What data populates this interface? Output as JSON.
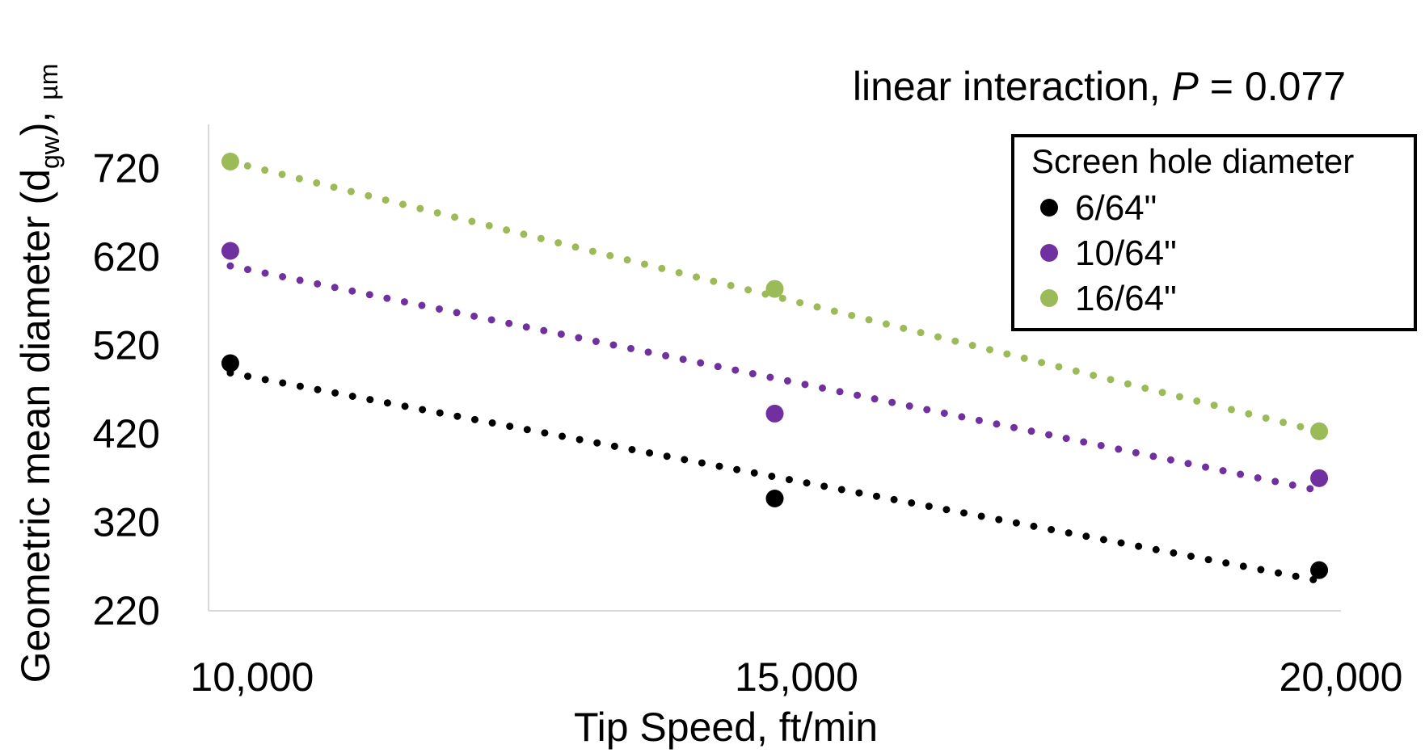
{
  "chart_data": {
    "type": "scatter",
    "annotation": {
      "prefix": "linear interaction, ",
      "italic": "P",
      "suffix": " = 0.077"
    },
    "xlabel": "Tip Speed, ft/min",
    "ylabel": {
      "main": "Geometric mean diameter (d",
      "subscript": "gw",
      "after": "), ",
      "unit": "µm"
    },
    "xlim": [
      9600,
      20000
    ],
    "ylim": [
      220,
      770
    ],
    "x_ticks": [
      10000,
      15000,
      20000
    ],
    "x_tick_labels": [
      "10,000",
      "15,000",
      "20,000"
    ],
    "y_ticks": [
      220,
      320,
      420,
      520,
      620,
      720
    ],
    "y_tick_labels": [
      "220",
      "320",
      "420",
      "520",
      "620",
      "720"
    ],
    "grid": false,
    "legend": {
      "title": "Screen hole diameter",
      "position": "top-right"
    },
    "series": [
      {
        "name": "6/64\"",
        "color": "#000000",
        "x": [
          9800,
          14800,
          19800
        ],
        "y": [
          500,
          347,
          266
        ],
        "trend": {
          "x": [
            9800,
            19800
          ],
          "y": [
            489,
            254
          ]
        }
      },
      {
        "name": "10/64\"",
        "color": "#7030A0",
        "x": [
          9800,
          14800,
          19800
        ],
        "y": [
          627,
          443,
          370
        ],
        "trend": {
          "x": [
            9800,
            19800
          ],
          "y": [
            610,
            356
          ]
        }
      },
      {
        "name": "16/64\"",
        "color": "#9BBB59",
        "x": [
          9800,
          14800,
          19800
        ],
        "y": [
          728,
          584,
          423
        ],
        "trend": {
          "x": [
            9800,
            19800
          ],
          "y": [
            728,
            423
          ]
        }
      }
    ]
  }
}
